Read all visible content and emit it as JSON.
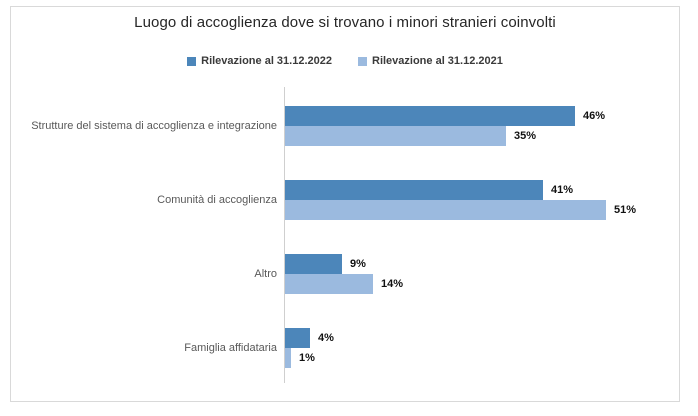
{
  "frame": {
    "border_color": "#d9d9d9",
    "background": "#ffffff",
    "axis_color": "#cfcfcf"
  },
  "chart_data": {
    "type": "bar",
    "orientation": "horizontal",
    "title": "Luogo di accoglienza dove si trovano i minori stranieri coinvolti",
    "categories": [
      "Strutture del sistema di accoglienza e integrazione",
      "Comunità di accoglienza",
      "Altro",
      "Famiglia affidataria"
    ],
    "series": [
      {
        "name": "Rilevazione al 31.12.2022",
        "color": "#4C86BA",
        "values": [
          46,
          41,
          9,
          4
        ]
      },
      {
        "name": "Rilevazione al 31.12.2021",
        "color": "#9BBADF",
        "values": [
          35,
          51,
          14,
          1
        ]
      }
    ],
    "value_suffix": "%",
    "xlim": [
      0,
      55
    ],
    "grid": false,
    "legend_position": "top",
    "data_labels": "outside-end-bold"
  }
}
